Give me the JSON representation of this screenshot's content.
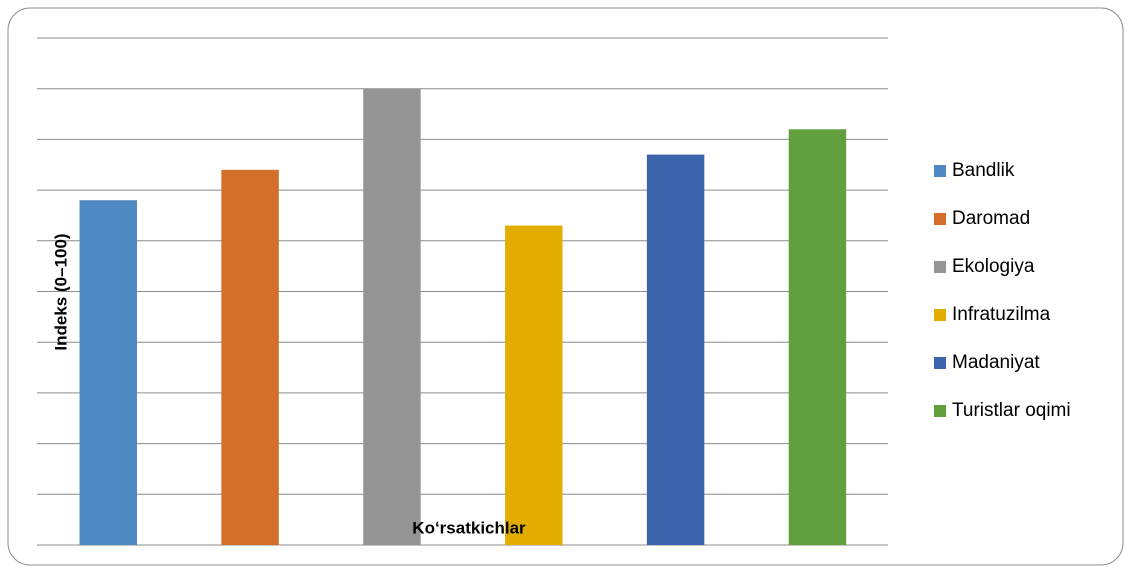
{
  "chart_data": {
    "type": "bar",
    "categories": [
      "Bandlik",
      "Daromad",
      "Ekologiya",
      "Infratuzilma",
      "Madaniyat",
      "Turistlar oqimi"
    ],
    "values": [
      68,
      74,
      90,
      63,
      77,
      82
    ],
    "colors": [
      "#4f8ac2",
      "#d36f2b",
      "#959595",
      "#e3ac00",
      "#3b64ad",
      "#62a03e"
    ],
    "x_label": "Koʻrsatkichlar",
    "y_label": "Indeks (0–100)",
    "ylim": [
      0,
      100
    ],
    "yticks": [
      0,
      10,
      20,
      30,
      40,
      50,
      60,
      70,
      80,
      90,
      100
    ],
    "grid": true,
    "legend": "right"
  }
}
